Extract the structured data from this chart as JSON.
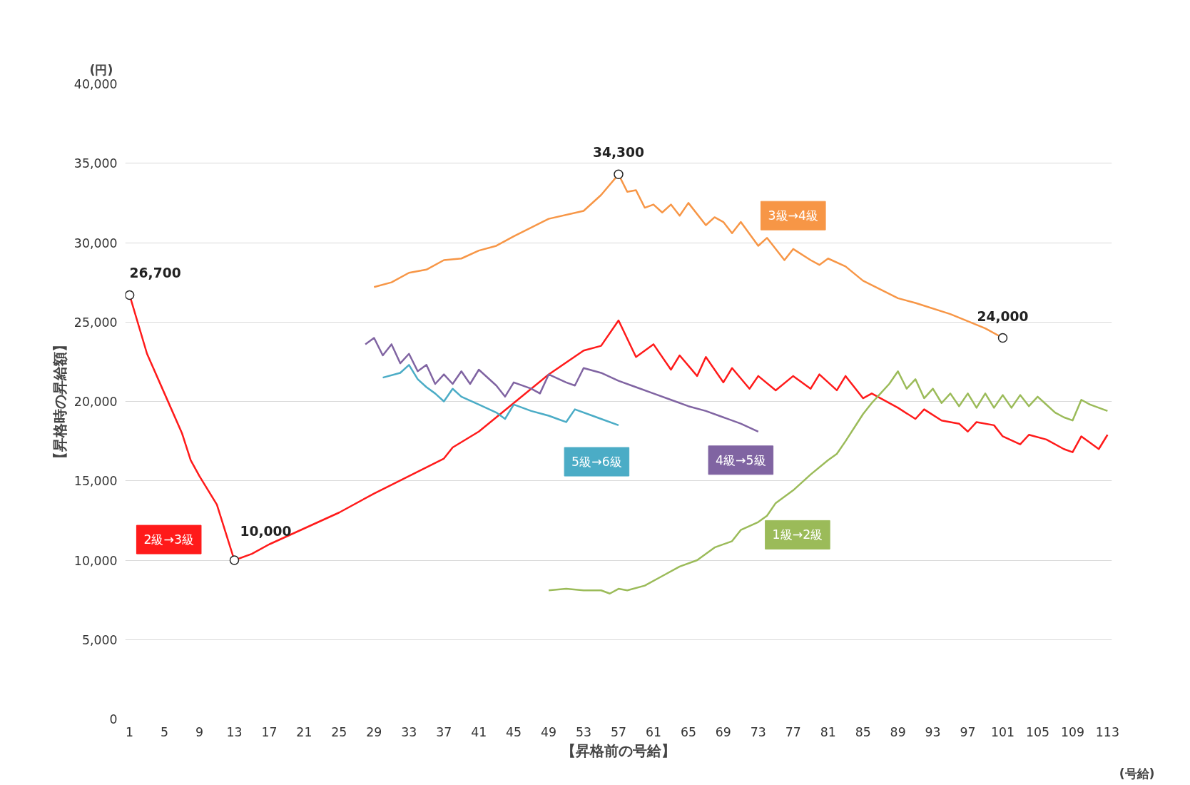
{
  "chart_data": {
    "type": "line",
    "xlabel": "【昇格前の号給】",
    "ylabel": "【昇格時の昇給額】",
    "xlim": [
      0.5,
      113.5
    ],
    "ylim": [
      0,
      40000
    ],
    "xticks": [
      1,
      5,
      9,
      13,
      17,
      21,
      25,
      29,
      33,
      37,
      41,
      45,
      49,
      53,
      57,
      61,
      65,
      69,
      73,
      77,
      81,
      85,
      89,
      93,
      97,
      101,
      105,
      109,
      113
    ],
    "yticks": [
      0,
      {
        "value": 5000,
        "label": "5,000"
      },
      {
        "value": 10000,
        "label": "10,000"
      },
      {
        "value": 15000,
        "label": "15,000"
      },
      {
        "value": 20000,
        "label": "20,000"
      },
      {
        "value": 25000,
        "label": "25,000"
      },
      {
        "value": 30000,
        "label": "30,000"
      },
      {
        "value": 35000,
        "label": "35,000"
      },
      {
        "value": 40000,
        "label": "40,000"
      }
    ],
    "grid": "y",
    "series": [
      {
        "name": "2級→3級",
        "color": "#ff1a1a",
        "x": [
          1,
          3,
          5,
          7,
          8,
          9,
          11,
          13,
          15,
          17,
          21,
          25,
          29,
          33,
          37,
          38,
          41,
          45,
          49,
          53,
          55,
          57,
          59,
          61,
          63,
          64,
          66,
          67,
          69,
          70,
          72,
          73,
          75,
          77,
          79,
          80,
          82,
          83,
          85,
          86,
          89,
          91,
          92,
          94,
          96,
          97,
          98,
          100,
          101,
          103,
          104,
          106,
          108,
          109,
          110,
          112,
          113
        ],
        "values": [
          26700,
          23000,
          20500,
          18000,
          16300,
          15300,
          13500,
          10000,
          10400,
          11000,
          12000,
          13000,
          14200,
          15300,
          16400,
          17100,
          18100,
          19900,
          21700,
          23200,
          23500,
          25100,
          22800,
          23600,
          22000,
          22900,
          21600,
          22800,
          21200,
          22100,
          20800,
          21600,
          20700,
          21600,
          20800,
          21700,
          20700,
          21600,
          20200,
          20500,
          19600,
          18900,
          19500,
          18800,
          18600,
          18100,
          18700,
          18500,
          17800,
          17300,
          17900,
          17600,
          17000,
          16800,
          17800,
          17000,
          17900
        ]
      },
      {
        "name": "3級→4級",
        "color": "#f79646",
        "x": [
          29,
          31,
          33,
          35,
          37,
          39,
          41,
          43,
          45,
          49,
          53,
          55,
          57,
          58,
          59,
          60,
          61,
          62,
          63,
          64,
          65,
          67,
          68,
          69,
          70,
          71,
          73,
          74,
          76,
          77,
          79,
          80,
          81,
          83,
          85,
          89,
          91,
          95,
          99,
          101
        ],
        "values": [
          27200,
          27500,
          28100,
          28300,
          28900,
          29000,
          29500,
          29800,
          30400,
          31500,
          32000,
          33000,
          34300,
          33200,
          33300,
          32200,
          32400,
          31900,
          32400,
          31700,
          32500,
          31100,
          31600,
          31300,
          30600,
          31300,
          29800,
          30300,
          28900,
          29600,
          28900,
          28600,
          29000,
          28500,
          27600,
          26500,
          26200,
          25500,
          24600,
          24000
        ]
      },
      {
        "name": "4級→5級",
        "color": "#8064a2",
        "x": [
          28,
          29,
          30,
          31,
          32,
          33,
          34,
          35,
          36,
          37,
          38,
          39,
          40,
          41,
          43,
          44,
          45,
          47,
          48,
          49,
          51,
          52,
          53,
          55,
          57,
          59,
          61,
          63,
          65,
          67,
          69,
          71,
          73
        ],
        "values": [
          23600,
          24000,
          22900,
          23600,
          22400,
          23000,
          21900,
          22300,
          21100,
          21700,
          21100,
          21900,
          21100,
          22000,
          21000,
          20300,
          21200,
          20800,
          20500,
          21700,
          21200,
          21000,
          22100,
          21800,
          21300,
          20900,
          20500,
          20100,
          19700,
          19400,
          19000,
          18600,
          18100
        ]
      },
      {
        "name": "5級→6級",
        "color": "#4bacc6",
        "x": [
          30,
          32,
          33,
          34,
          35,
          36,
          37,
          38,
          39,
          41,
          43,
          44,
          45,
          47,
          49,
          50,
          51,
          52,
          54,
          55,
          57
        ],
        "values": [
          21500,
          21800,
          22300,
          21400,
          20900,
          20500,
          20000,
          20800,
          20300,
          19800,
          19300,
          18900,
          19800,
          19400,
          19100,
          18900,
          18700,
          19500,
          19100,
          18900,
          18500
        ]
      },
      {
        "name": "1級→2級",
        "color": "#9bbb59",
        "x": [
          49,
          51,
          53,
          55,
          56,
          57,
          58,
          60,
          62,
          64,
          66,
          68,
          70,
          71,
          73,
          74,
          75,
          76,
          77,
          79,
          81,
          82,
          83,
          85,
          86,
          87,
          88,
          89,
          90,
          91,
          92,
          93,
          94,
          95,
          96,
          97,
          98,
          99,
          100,
          101,
          102,
          103,
          104,
          105,
          106,
          107,
          108,
          109,
          110,
          111,
          113
        ],
        "values": [
          8100,
          8200,
          8100,
          8100,
          7900,
          8200,
          8100,
          8400,
          9000,
          9600,
          10000,
          10800,
          11200,
          11900,
          12400,
          12800,
          13600,
          14000,
          14400,
          15400,
          16300,
          16700,
          17500,
          19200,
          19900,
          20500,
          21100,
          21900,
          20800,
          21400,
          20200,
          20800,
          19900,
          20500,
          19700,
          20500,
          19600,
          20500,
          19600,
          20400,
          19600,
          20400,
          19700,
          20300,
          19800,
          19300,
          19000,
          18800,
          20100,
          19800,
          19400
        ]
      }
    ],
    "annotations": [
      "(円)",
      "(号給)",
      {
        "text": "26,700",
        "x": 1,
        "y": 26700
      },
      {
        "text": "10,000",
        "x": 13,
        "y": 10000
      },
      {
        "text": "34,300",
        "x": 57,
        "y": 34300
      },
      {
        "text": "24,000",
        "x": 101,
        "y": 24000
      }
    ]
  }
}
